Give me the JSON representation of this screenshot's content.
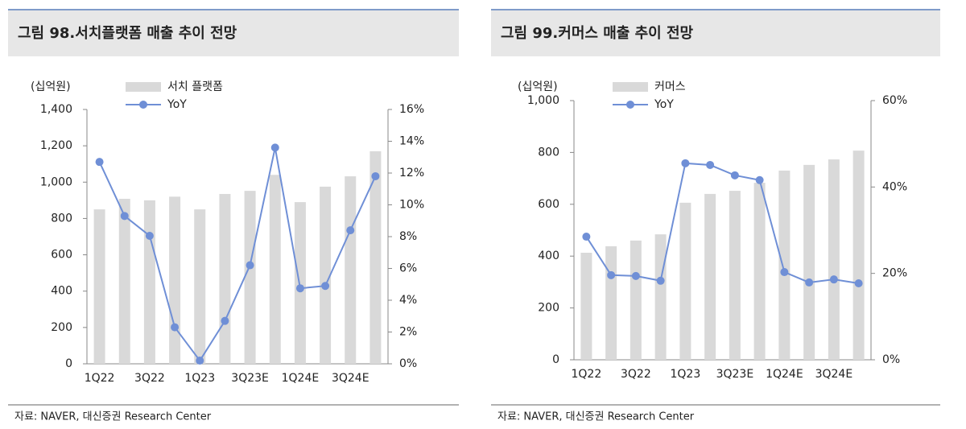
{
  "chart_data": [
    {
      "type": "bar",
      "title": "그림 98.서치플랫폼 매출 추이 전망",
      "y_unit": "(십억원)",
      "categories": [
        "1Q22",
        null,
        "3Q22",
        null,
        "1Q23",
        null,
        "3Q23E",
        null,
        "1Q24E",
        null,
        "3Q24E",
        null
      ],
      "series": [
        {
          "name": "서치 플랫폼",
          "color": "#d9d9d9",
          "values": [
            850,
            908,
            900,
            920,
            850,
            935,
            952,
            1040,
            890,
            975,
            1032,
            1170
          ]
        },
        {
          "name": "YoY",
          "color": "#6f8fd6",
          "axis": "y2",
          "type": "line",
          "values": [
            12.7,
            9.3,
            8.05,
            2.3,
            0.2,
            2.7,
            6.2,
            13.6,
            4.75,
            4.9,
            8.4,
            11.8
          ]
        }
      ],
      "ylim": [
        0,
        1400
      ],
      "yticks": [
        0,
        200,
        400,
        600,
        800,
        {
          "value": 1000,
          "label": "1,000"
        },
        {
          "value": 1200,
          "label": "1,200"
        },
        {
          "value": 1400,
          "label": "1,400"
        }
      ],
      "y2lim": [
        0,
        16
      ],
      "y2ticks": [
        {
          "value": 0,
          "label": "0%"
        },
        {
          "value": 2,
          "label": "2%"
        },
        {
          "value": 4,
          "label": "4%"
        },
        {
          "value": 6,
          "label": "6%"
        },
        {
          "value": 8,
          "label": "8%"
        },
        {
          "value": 10,
          "label": "10%"
        },
        {
          "value": 12,
          "label": "12%"
        },
        {
          "value": 14,
          "label": "14%"
        },
        {
          "value": 16,
          "label": "16%"
        }
      ],
      "source": "자료: NAVER, 대신증권 Research Center"
    },
    {
      "type": "bar",
      "title": "그림 99.커머스 매출 추이 전망",
      "y_unit": "(십억원)",
      "categories": [
        "1Q22",
        null,
        "3Q22",
        null,
        "1Q23",
        null,
        "3Q23E",
        null,
        "1Q24E",
        null,
        "3Q24E",
        null
      ],
      "series": [
        {
          "name": "커머스",
          "color": "#d9d9d9",
          "values": [
            413,
            438,
            460,
            484,
            606,
            640,
            652,
            683,
            730,
            752,
            773,
            807
          ]
        },
        {
          "name": "YoY",
          "color": "#6f8fd6",
          "axis": "y2",
          "type": "line",
          "values": [
            28.5,
            19.6,
            19.4,
            18.3,
            45.5,
            45.1,
            42.7,
            41.6,
            20.3,
            17.9,
            18.6,
            17.7
          ]
        }
      ],
      "ylim": [
        0,
        1000
      ],
      "yticks": [
        0,
        200,
        400,
        600,
        800,
        {
          "value": 1000,
          "label": "1,000"
        }
      ],
      "y2lim": [
        0,
        60
      ],
      "y2ticks": [
        {
          "value": 0,
          "label": "0%"
        },
        {
          "value": 20,
          "label": "20%"
        },
        {
          "value": 40,
          "label": "40%"
        },
        {
          "value": 60,
          "label": "60%"
        }
      ],
      "source": "자료: NAVER, 대신증권 Research Center"
    }
  ]
}
